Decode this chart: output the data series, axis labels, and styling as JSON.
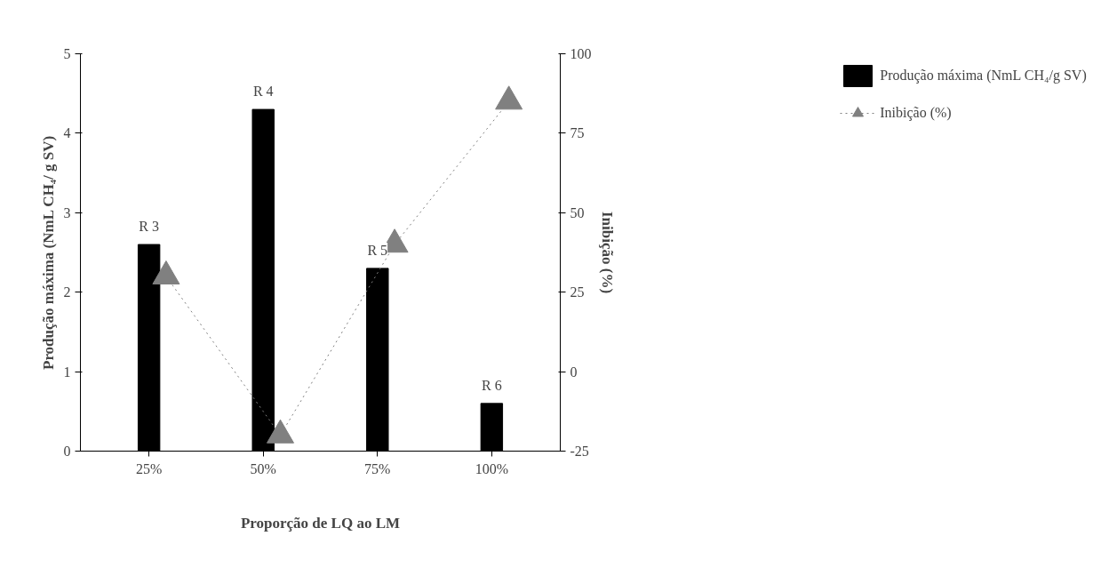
{
  "chart_data": {
    "type": "bar",
    "xlabel": "Proporção de LQ ao LM",
    "ylabel": "Produção máxima (NmL CH₄/ g SV)",
    "y2label": "Inibição (%)",
    "categories": [
      "25%",
      "50%",
      "75%",
      "100%"
    ],
    "series": [
      {
        "name": "Produção máxima (NmL CH₄/g SV)",
        "color": "#000000",
        "values": [
          2.6,
          4.3,
          2.3,
          0.6
        ]
      },
      {
        "name": "Inibição (%)",
        "type": "line",
        "axis": "y2",
        "color": "#808080",
        "marker": "triangle",
        "line_style": "dotted",
        "values": [
          30,
          -20,
          40,
          85
        ]
      }
    ],
    "ylim": [
      0,
      5
    ],
    "yticks": [
      0,
      1,
      2,
      3,
      4,
      5
    ],
    "y2lim": [
      -25,
      100
    ],
    "y2ticks": [
      -25,
      0,
      25,
      50,
      75,
      100
    ],
    "annotations": [
      {
        "text": "R 3",
        "x": "25%",
        "y": 2.6
      },
      {
        "text": "R 4",
        "x": "50%",
        "y": 4.3
      },
      {
        "text": "R 5",
        "x": "75%",
        "y": 2.3
      },
      {
        "text": "R 6",
        "x": "100%",
        "y": 0.6
      }
    ],
    "grid": false,
    "legend": "top right"
  }
}
